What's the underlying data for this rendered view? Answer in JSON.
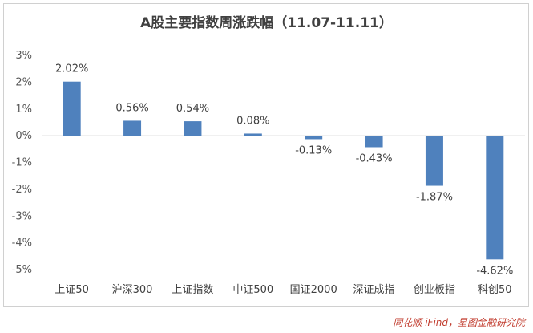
{
  "chart_data": {
    "type": "bar",
    "title": "A股主要指数周涨跌幅（11.07-11.11）",
    "categories": [
      "上证50",
      "沪深300",
      "上证指数",
      "中证500",
      "国证2000",
      "深证成指",
      "创业板指",
      "科创50"
    ],
    "values": [
      2.02,
      0.56,
      0.54,
      0.08,
      -0.13,
      -0.43,
      -1.87,
      -4.62
    ],
    "data_labels": [
      "2.02%",
      "0.56%",
      "0.54%",
      "0.08%",
      "-0.13%",
      "-0.43%",
      "-1.87%",
      "-4.62%"
    ],
    "yticks": [
      3,
      2,
      1,
      0,
      -1,
      -2,
      -3,
      -4,
      -5
    ],
    "ytick_labels": [
      "3%",
      "2%",
      "1%",
      "0%",
      "-1%",
      "-2%",
      "-3%",
      "-4%",
      "-5%"
    ],
    "ylim": [
      -5,
      3
    ],
    "xlabel": "",
    "ylabel": "",
    "grid": false,
    "legend": "none",
    "bar_color": "#4f81bd"
  },
  "source_note": "同花顺 iFind，星图金融研究院"
}
